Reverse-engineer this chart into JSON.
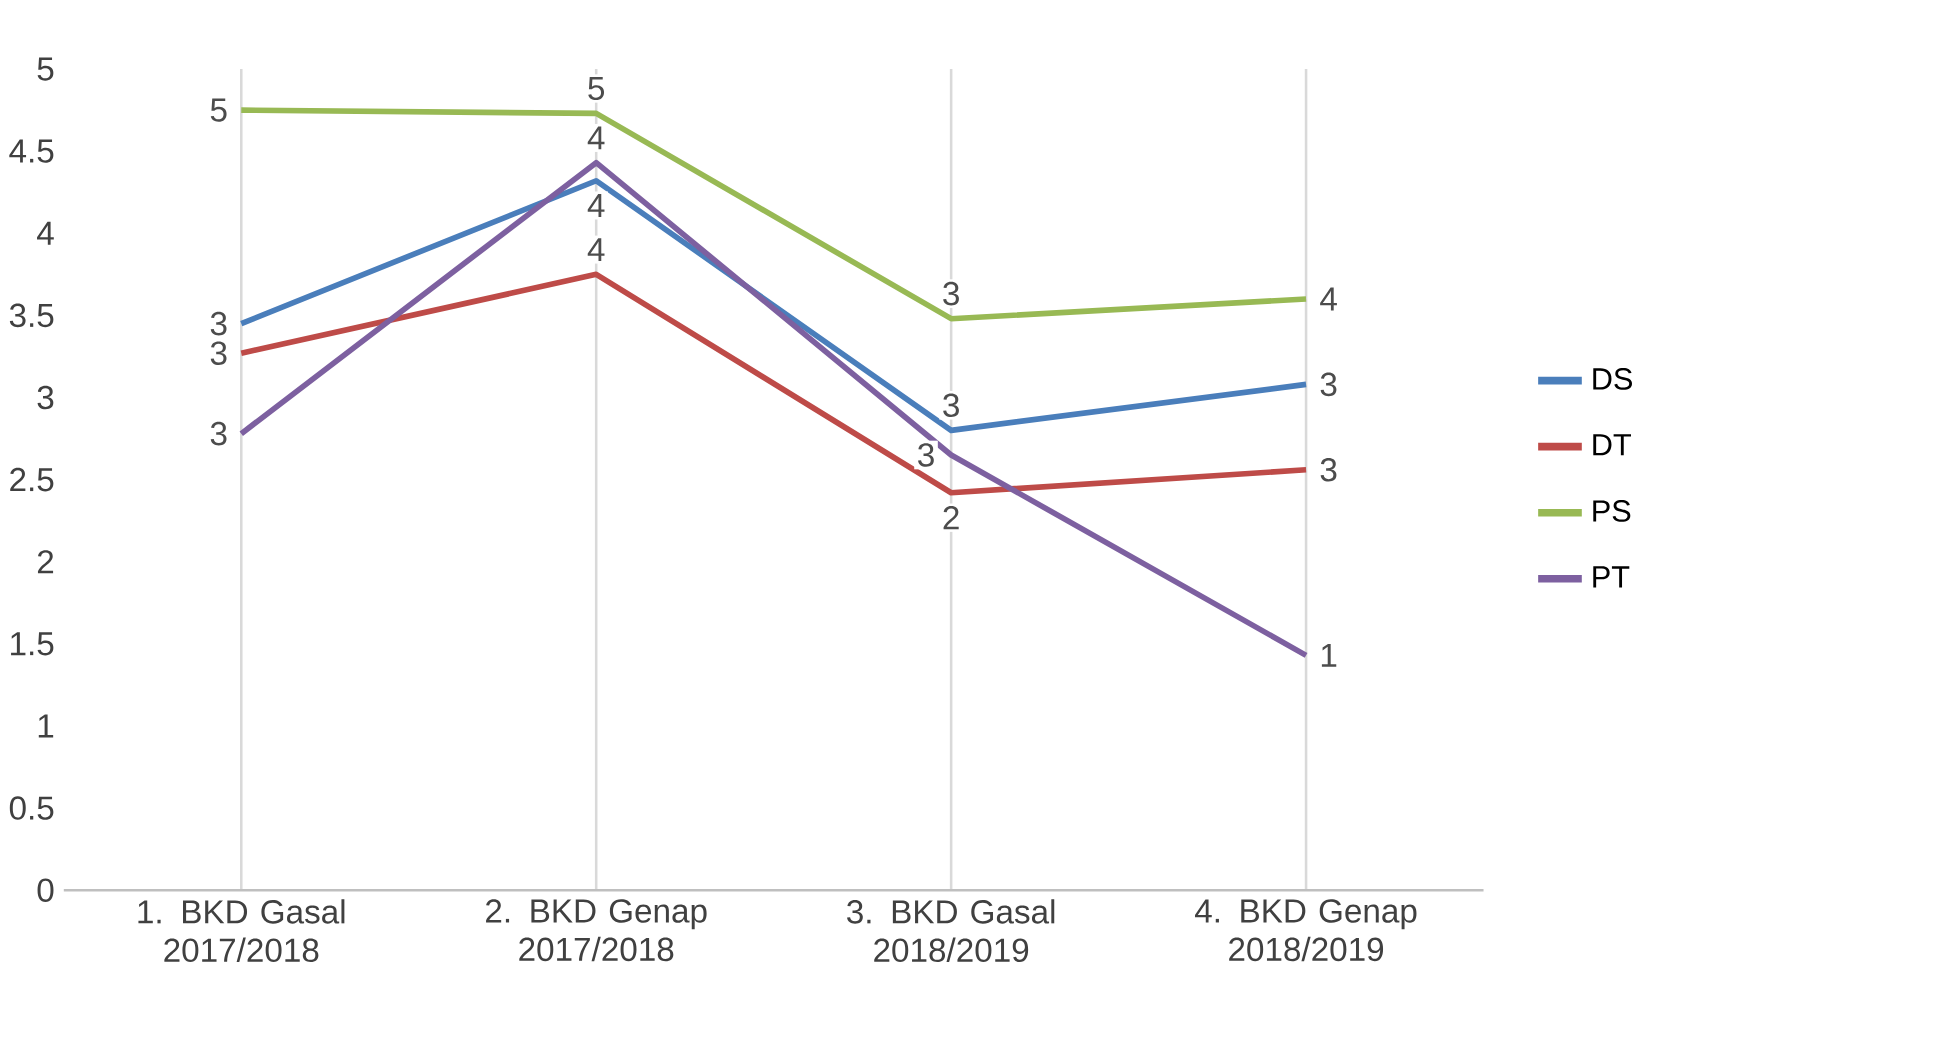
{
  "chart_data": {
    "type": "line",
    "categories": [
      "1. BKD Gasal 2017/2018",
      "2. BKD Genap 2017/2018",
      "3. BKD Gasal 2018/2019",
      "4. BKD Genap 2018/2019"
    ],
    "series": [
      {
        "name": "DS",
        "color": "#4a7ebb",
        "values": [
          3.45,
          4.32,
          2.8,
          3.08
        ],
        "value_labels": [
          "3",
          "4",
          "3",
          "3"
        ]
      },
      {
        "name": "DT",
        "color": "#be4b48",
        "values": [
          3.27,
          3.75,
          2.42,
          2.56
        ],
        "value_labels": [
          "3",
          "4",
          "2",
          "3"
        ]
      },
      {
        "name": "PS",
        "color": "#98b954",
        "values": [
          4.75,
          4.73,
          3.48,
          3.6
        ],
        "value_labels": [
          "5",
          "5",
          "3",
          "4"
        ]
      },
      {
        "name": "PT",
        "color": "#7d60a0",
        "values": [
          2.78,
          4.43,
          2.65,
          1.43
        ],
        "value_labels": [
          "3",
          "4",
          "3",
          "1"
        ]
      }
    ],
    "ylim": [
      0,
      5
    ],
    "yticks": [
      0,
      0.5,
      1,
      1.5,
      2,
      2.5,
      3,
      3.5,
      4,
      4.5,
      5
    ],
    "grid": "x",
    "legend": "right",
    "line_style": "solid"
  }
}
